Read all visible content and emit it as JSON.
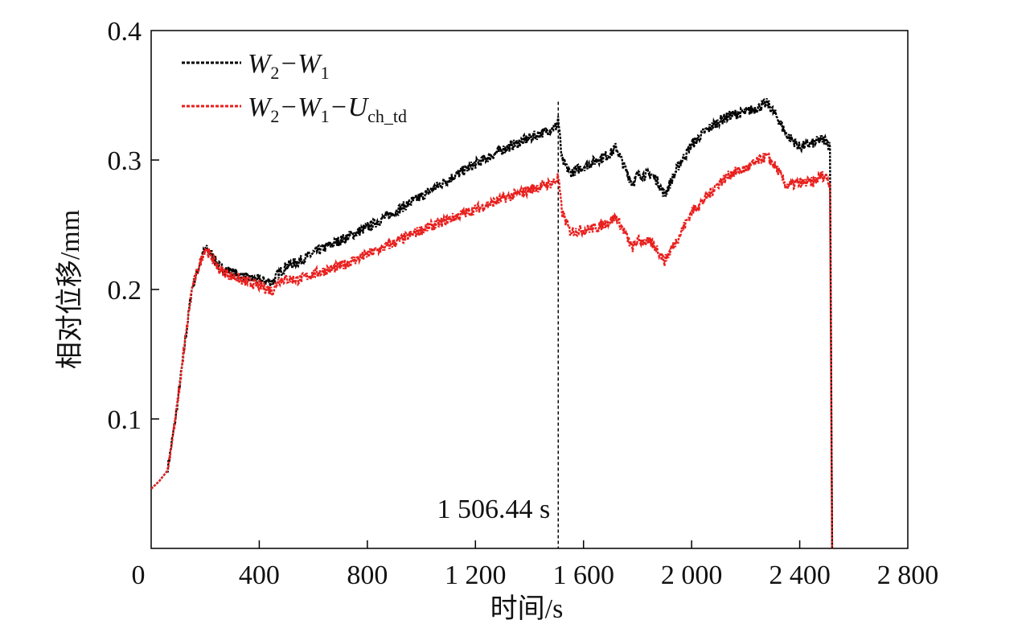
{
  "chart_data": {
    "type": "line",
    "xlabel": "时间/s",
    "ylabel": "相对位移/mm",
    "xlim": [
      0,
      2800
    ],
    "ylim": [
      0,
      0.4
    ],
    "x_ticks": [
      0,
      400,
      800,
      1200,
      1600,
      2000,
      2400,
      2800
    ],
    "x_tick_labels": [
      "0",
      "400",
      "800",
      "1 200",
      "1 600",
      "2 000",
      "2 400",
      "2 800"
    ],
    "y_ticks": [
      0.1,
      0.2,
      0.3,
      0.4
    ],
    "y_tick_labels": [
      "0.1",
      "0.2",
      "0.3",
      "0.4"
    ],
    "grid": false,
    "legend_position": "top-left",
    "series": [
      {
        "name": "W2-W1",
        "legend": {
          "a": "W",
          "a_sub": "2",
          "b": "W",
          "b_sub": "1",
          "c": "",
          "c_sub": ""
        },
        "color": "#000000",
        "x": [
          0,
          30,
          60,
          90,
          120,
          150,
          180,
          200,
          220,
          250,
          300,
          350,
          400,
          450,
          470,
          500,
          550,
          600,
          700,
          800,
          900,
          1000,
          1100,
          1200,
          1300,
          1400,
          1480,
          1500,
          1506,
          1520,
          1550,
          1600,
          1650,
          1700,
          1720,
          1750,
          1780,
          1800,
          1850,
          1870,
          1900,
          1950,
          2000,
          2050,
          2100,
          2150,
          2200,
          2250,
          2280,
          2320,
          2350,
          2400,
          2450,
          2480,
          2500,
          2512,
          2520
        ],
        "y": [
          0.046,
          0.052,
          0.06,
          0.1,
          0.15,
          0.2,
          0.22,
          0.232,
          0.228,
          0.218,
          0.213,
          0.209,
          0.207,
          0.206,
          0.212,
          0.218,
          0.222,
          0.228,
          0.238,
          0.248,
          0.26,
          0.272,
          0.285,
          0.297,
          0.308,
          0.317,
          0.324,
          0.326,
          0.333,
          0.3,
          0.29,
          0.295,
          0.3,
          0.305,
          0.31,
          0.295,
          0.282,
          0.288,
          0.289,
          0.285,
          0.273,
          0.295,
          0.312,
          0.322,
          0.33,
          0.335,
          0.337,
          0.341,
          0.344,
          0.332,
          0.32,
          0.31,
          0.313,
          0.316,
          0.315,
          0.31,
          0.0
        ]
      },
      {
        "name": "W2-W1-Uch_td",
        "legend": {
          "a": "W",
          "a_sub": "2",
          "b": "W",
          "b_sub": "1",
          "c": "U",
          "c_sub": "ch_td"
        },
        "color": "#e8201e",
        "x": [
          0,
          30,
          60,
          90,
          120,
          150,
          180,
          200,
          220,
          250,
          300,
          350,
          400,
          450,
          470,
          500,
          550,
          600,
          700,
          800,
          900,
          1000,
          1100,
          1200,
          1300,
          1400,
          1480,
          1500,
          1506,
          1520,
          1550,
          1600,
          1650,
          1700,
          1720,
          1750,
          1780,
          1800,
          1850,
          1870,
          1900,
          1950,
          2000,
          2050,
          2100,
          2150,
          2200,
          2250,
          2280,
          2320,
          2350,
          2400,
          2450,
          2480,
          2500,
          2512,
          2520
        ],
        "y": [
          0.046,
          0.052,
          0.06,
          0.1,
          0.15,
          0.2,
          0.22,
          0.232,
          0.226,
          0.216,
          0.21,
          0.206,
          0.203,
          0.199,
          0.207,
          0.208,
          0.208,
          0.212,
          0.218,
          0.227,
          0.236,
          0.246,
          0.254,
          0.262,
          0.27,
          0.277,
          0.282,
          0.284,
          0.288,
          0.26,
          0.245,
          0.246,
          0.248,
          0.253,
          0.256,
          0.245,
          0.232,
          0.238,
          0.236,
          0.232,
          0.222,
          0.24,
          0.26,
          0.27,
          0.282,
          0.29,
          0.293,
          0.3,
          0.303,
          0.292,
          0.28,
          0.282,
          0.283,
          0.288,
          0.287,
          0.28,
          0.0
        ]
      }
    ],
    "annotations": [
      {
        "text": "1 506.44 s",
        "x": 1506.44
      }
    ]
  }
}
